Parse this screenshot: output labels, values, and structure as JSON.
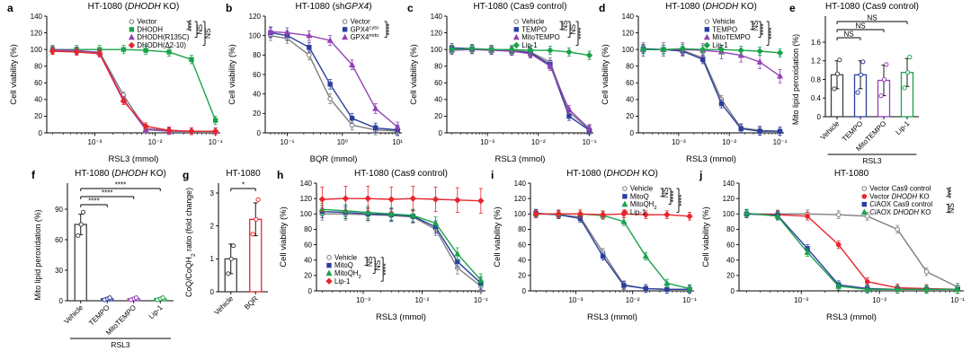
{
  "figure": {
    "background": "#ffffff"
  },
  "chart_data": [
    {
      "letter": "a",
      "type": "line",
      "title": "HT-1080 (*DHODH* KO)",
      "xlabel": "RSL3 (mmol)",
      "ylabel": "Cell viability (%)",
      "xlim": [
        0.00016,
        0.12
      ],
      "xticks": [
        0.001,
        0.01,
        0.1
      ],
      "xtick_labels": [
        "10⁻³",
        "10⁻²",
        "10⁻¹"
      ],
      "ylim": [
        0,
        140
      ],
      "yticks": [
        0,
        20,
        40,
        60,
        80,
        100,
        120,
        140
      ],
      "x": [
        0.0002,
        0.0005,
        0.0012,
        0.003,
        0.007,
        0.017,
        0.04,
        0.1
      ],
      "legend_pos": "top-right",
      "series": [
        {
          "name": "Vector",
          "color": "#7f7f7f",
          "marker": "circle",
          "open": true,
          "err": 4,
          "y": [
            99,
            98,
            97,
            45,
            5,
            3,
            2,
            2
          ]
        },
        {
          "name": "DHODH",
          "color": "#1aa34a",
          "marker": "square",
          "err": 5,
          "y": [
            100,
            100,
            100,
            100,
            99,
            97,
            88,
            15
          ]
        },
        {
          "name": "DHODH(R135C)",
          "color": "#9340b5",
          "marker": "triangle",
          "err": 4,
          "y": [
            100,
            99,
            96,
            40,
            4,
            2,
            2,
            2
          ]
        },
        {
          "name": "DHODH(Δ2-10)",
          "color": "#e8262d",
          "marker": "diamond",
          "err": 4,
          "y": [
            98,
            97,
            95,
            38,
            8,
            3,
            2,
            2
          ]
        }
      ],
      "sig": [
        {
          "to": 1,
          "label": "****"
        },
        {
          "to": 2,
          "label": "NS"
        },
        {
          "to": 3,
          "label": "NS"
        }
      ]
    },
    {
      "letter": "b",
      "type": "line",
      "title": "HT-1080 (sh*GPX4*)",
      "xlabel": "BQR (mmol)",
      "ylabel": "Cell viability (%)",
      "xlim": [
        0.04,
        12
      ],
      "xticks": [
        0.1,
        1,
        10
      ],
      "xtick_labels": [
        "10⁻¹",
        "10⁰",
        "10¹"
      ],
      "ylim": [
        0,
        120
      ],
      "yticks": [
        0,
        20,
        40,
        60,
        80,
        100,
        120
      ],
      "x": [
        0.05,
        0.1,
        0.25,
        0.6,
        1.5,
        4,
        10
      ],
      "legend_pos": "top-right",
      "series": [
        {
          "name": "Vector",
          "color": "#7f7f7f",
          "marker": "circle",
          "open": true,
          "err": 5,
          "y": [
            100,
            97,
            80,
            35,
            8,
            3,
            2
          ]
        },
        {
          "name": "GPX4^cyto^",
          "color": "#2b3f9e",
          "marker": "square",
          "err": 5,
          "y": [
            103,
            100,
            88,
            50,
            15,
            5,
            3
          ]
        },
        {
          "name": "GPX4^mito^",
          "color": "#9340b5",
          "marker": "triangle",
          "err": 5,
          "y": [
            104,
            103,
            100,
            95,
            70,
            25,
            6
          ]
        }
      ],
      "sig": [
        {
          "to": 2,
          "label": "****"
        }
      ]
    },
    {
      "letter": "c",
      "type": "line",
      "title": "HT-1080 (Cas9 control)",
      "xlabel": "RSL3 (mmol)",
      "ylabel": "Cell viability (%)",
      "xlim": [
        0.00016,
        0.12
      ],
      "xticks": [
        0.001,
        0.01,
        0.1
      ],
      "xtick_labels": [
        "10⁻³",
        "10⁻²",
        "10⁻¹"
      ],
      "ylim": [
        0,
        140
      ],
      "yticks": [
        0,
        20,
        40,
        60,
        80,
        100,
        120,
        140
      ],
      "x": [
        0.0002,
        0.0005,
        0.0012,
        0.003,
        0.007,
        0.017,
        0.04,
        0.1
      ],
      "legend_pos": "top-right",
      "series": [
        {
          "name": "Vehicle",
          "color": "#7f7f7f",
          "marker": "circle",
          "open": true,
          "err": 5,
          "y": [
            100,
            100,
            100,
            99,
            97,
            85,
            25,
            4
          ]
        },
        {
          "name": "TEMPO",
          "color": "#2b3f9e",
          "marker": "square",
          "err": 5,
          "y": [
            102,
            101,
            100,
            98,
            96,
            82,
            20,
            3
          ]
        },
        {
          "name": "MitoTEMPO",
          "color": "#9340b5",
          "marker": "triangle",
          "err": 5,
          "y": [
            99,
            100,
            99,
            98,
            95,
            80,
            28,
            5
          ]
        },
        {
          "name": "Lip-1",
          "color": "#1aa34a",
          "marker": "diamond",
          "err": 5,
          "y": [
            100,
            101,
            100,
            100,
            99,
            99,
            97,
            93
          ]
        }
      ],
      "sig": [
        {
          "to": 1,
          "label": "NS"
        },
        {
          "to": 2,
          "label": "NS"
        },
        {
          "to": 3,
          "label": "****"
        }
      ]
    },
    {
      "letter": "d",
      "type": "line",
      "title": "HT-1080 (*DHODH* KO)",
      "xlabel": "RSL3 (mmol)",
      "ylabel": "Cell viability (%)",
      "xlim": [
        0.00016,
        0.12
      ],
      "xticks": [
        0.001,
        0.01,
        0.1
      ],
      "xtick_labels": [
        "10⁻³",
        "10⁻²",
        "10⁻¹"
      ],
      "ylim": [
        0,
        140
      ],
      "yticks": [
        0,
        20,
        40,
        60,
        80,
        100,
        120,
        140
      ],
      "x": [
        0.0002,
        0.0005,
        0.0012,
        0.003,
        0.007,
        0.017,
        0.04,
        0.1
      ],
      "legend_pos": "top-right",
      "series": [
        {
          "name": "Vehicle",
          "color": "#7f7f7f",
          "marker": "circle",
          "open": true,
          "err": 5,
          "y": [
            100,
            100,
            99,
            90,
            40,
            6,
            3,
            2
          ]
        },
        {
          "name": "TEMPO",
          "color": "#2b3f9e",
          "marker": "square",
          "err": 5,
          "y": [
            101,
            100,
            98,
            88,
            35,
            5,
            2,
            2
          ]
        },
        {
          "name": "MitoTEMPO",
          "color": "#9340b5",
          "marker": "triangle",
          "err": 8,
          "y": [
            100,
            100,
            100,
            99,
            97,
            93,
            85,
            68
          ]
        },
        {
          "name": "Lip-1",
          "color": "#1aa34a",
          "marker": "diamond",
          "err": 5,
          "y": [
            100,
            100,
            101,
            100,
            100,
            99,
            98,
            96
          ]
        }
      ],
      "sig": [
        {
          "to": 1,
          "label": "NS"
        },
        {
          "to": 2,
          "label": "****"
        },
        {
          "to": 3,
          "label": "****"
        }
      ]
    },
    {
      "letter": "e",
      "type": "bar",
      "title": "HT-1080 (Cas9 control)",
      "ylabel": "Mito lipid peroxidation (%)",
      "ylim": [
        0,
        1.6
      ],
      "yticks": [
        0,
        0.4,
        0.8,
        1.2,
        1.6
      ],
      "categories": [
        "Vehicle",
        "TEMPO",
        "MitoTEMPO",
        "Lip-1"
      ],
      "colors": [
        "#404040",
        "#2b3f9e",
        "#9340b5",
        "#1aa34a"
      ],
      "values": [
        0.9,
        0.9,
        0.78,
        0.95
      ],
      "err": [
        0.3,
        0.3,
        0.33,
        0.3
      ],
      "points": [
        [
          0.6,
          0.92,
          1.22
        ],
        [
          0.52,
          0.9,
          1.18
        ],
        [
          0.45,
          0.8,
          1.12
        ],
        [
          0.62,
          0.95,
          1.28
        ]
      ],
      "group_label": "RSL3",
      "plot_right_pad": 56,
      "sig": [
        {
          "to": 1,
          "label": "NS"
        },
        {
          "to": 2,
          "label": "NS"
        },
        {
          "to": 3,
          "label": "NS"
        }
      ]
    },
    {
      "letter": "f",
      "type": "bar",
      "title": "HT-1080 (*DHODH* KO)",
      "ylabel": "Mito lipid peroxidation (%)",
      "ylim": [
        0,
        90
      ],
      "yticks": [
        0,
        30,
        60,
        90
      ],
      "categories": [
        "Vehicle",
        "TEMPO",
        "MitoTEMPO",
        "Lip-1"
      ],
      "colors": [
        "#404040",
        "#2b3f9e",
        "#9340b5",
        "#1aa34a"
      ],
      "values": [
        75,
        2,
        2,
        2
      ],
      "err": [
        10,
        1,
        1,
        1
      ],
      "points": [
        [
          64,
          75,
          87
        ],
        [
          1,
          2,
          3
        ],
        [
          1,
          2,
          3
        ],
        [
          1,
          2,
          3
        ]
      ],
      "group_label": "RSL3",
      "sig": [
        {
          "to": 1,
          "label": "****"
        },
        {
          "to": 2,
          "label": "****"
        },
        {
          "to": 3,
          "label": "****"
        }
      ]
    },
    {
      "letter": "g",
      "type": "bar",
      "title": "HT-1080",
      "ylabel": "CoQ/CoQH_2_ ratio (fold change)",
      "ylim": [
        0,
        3
      ],
      "yticks": [
        0,
        1,
        2,
        3
      ],
      "categories": [
        "Vehicle",
        "BQR"
      ],
      "colors": [
        "#404040",
        "#e8262d"
      ],
      "values": [
        1.0,
        2.2
      ],
      "err": [
        0.45,
        0.5
      ],
      "points": [
        [
          0.55,
          1.0,
          1.4
        ],
        [
          1.75,
          2.2,
          2.8
        ]
      ],
      "sig": [
        {
          "to": 1,
          "label": "*"
        }
      ]
    },
    {
      "letter": "h",
      "type": "line",
      "title": "HT-1080 (Cas9 control)",
      "xlabel": "RSL3 (mmol)",
      "ylabel": "Cell viability (%)",
      "xlim": [
        0.00016,
        0.12
      ],
      "xticks": [
        0.001,
        0.01,
        0.1
      ],
      "xtick_labels": [
        "10⁻³",
        "10⁻²",
        "10⁻¹"
      ],
      "ylim": [
        0,
        140
      ],
      "yticks": [
        0,
        20,
        40,
        60,
        80,
        100,
        120,
        140
      ],
      "x": [
        0.0002,
        0.0005,
        0.0012,
        0.003,
        0.007,
        0.017,
        0.04,
        0.1
      ],
      "legend_pos": "bottom-left",
      "series": [
        {
          "name": "Vehicle",
          "color": "#7f7f7f",
          "marker": "circle",
          "open": true,
          "err": 8,
          "y": [
            100,
            100,
            99,
            98,
            96,
            80,
            30,
            6
          ]
        },
        {
          "name": "MitoQ",
          "color": "#2b3f9e",
          "marker": "square",
          "err": 8,
          "y": [
            103,
            102,
            100,
            99,
            97,
            83,
            38,
            10
          ]
        },
        {
          "name": "MitoQH_2_",
          "color": "#1aa34a",
          "marker": "triangle",
          "err": 8,
          "y": [
            106,
            104,
            102,
            100,
            98,
            88,
            48,
            14
          ]
        },
        {
          "name": "Lip-1",
          "color": "#e8262d",
          "marker": "diamond",
          "err": 16,
          "y": [
            119,
            120,
            120,
            119,
            120,
            119,
            118,
            117
          ]
        }
      ],
      "sig": [
        {
          "to": 1,
          "label": "NS"
        },
        {
          "to": 2,
          "label": "NS"
        },
        {
          "to": 3,
          "label": "****"
        }
      ]
    },
    {
      "letter": "i",
      "type": "line",
      "title": "HT-1080 (*DHODH* KO)",
      "xlabel": "RSL3 (mmol)",
      "ylabel": "Cell viability (%)",
      "xlim": [
        0.00016,
        0.12
      ],
      "xticks": [
        0.001,
        0.01,
        0.1
      ],
      "xtick_labels": [
        "10⁻³",
        "10⁻²",
        "10⁻¹"
      ],
      "ylim": [
        0,
        140
      ],
      "yticks": [
        0,
        20,
        40,
        60,
        80,
        100,
        120,
        140
      ],
      "x": [
        0.0002,
        0.0005,
        0.0012,
        0.003,
        0.007,
        0.017,
        0.04,
        0.1
      ],
      "legend_pos": "top-right",
      "series": [
        {
          "name": "Vehicle",
          "color": "#7f7f7f",
          "marker": "circle",
          "open": true,
          "err": 5,
          "y": [
            100,
            99,
            96,
            50,
            8,
            3,
            2,
            2
          ]
        },
        {
          "name": "MitoQ",
          "color": "#2b3f9e",
          "marker": "square",
          "err": 5,
          "y": [
            101,
            99,
            94,
            45,
            7,
            3,
            2,
            2
          ]
        },
        {
          "name": "MitoQH_2_",
          "color": "#1aa34a",
          "marker": "triangle",
          "err": 5,
          "y": [
            100,
            100,
            100,
            98,
            90,
            45,
            10,
            3
          ]
        },
        {
          "name": "Lip-1",
          "color": "#e8262d",
          "marker": "diamond",
          "err": 5,
          "y": [
            100,
            100,
            100,
            99,
            100,
            99,
            99,
            97
          ]
        }
      ],
      "sig": [
        {
          "to": 1,
          "label": "NS"
        },
        {
          "to": 2,
          "label": "****"
        },
        {
          "to": 3,
          "label": "****"
        }
      ]
    },
    {
      "letter": "j",
      "type": "line",
      "title": "HT-1080",
      "xlabel": "RSL3 (mmol)",
      "ylabel": "Cell viability (%)",
      "xlim": [
        0.00016,
        0.12
      ],
      "xticks": [
        0.001,
        0.01,
        0.1
      ],
      "xtick_labels": [
        "10⁻³",
        "10⁻²",
        "10⁻¹"
      ],
      "ylim": [
        0,
        140
      ],
      "yticks": [
        0,
        20,
        40,
        60,
        80,
        100,
        120,
        140
      ],
      "x": [
        0.0002,
        0.0005,
        0.0012,
        0.003,
        0.007,
        0.017,
        0.04,
        0.1
      ],
      "legend_pos": "top-right",
      "series": [
        {
          "name": "Vector Cas9 control",
          "color": "#7f7f7f",
          "marker": "circle",
          "open": true,
          "err": 5,
          "y": [
            100,
            100,
            100,
            99,
            97,
            80,
            25,
            5
          ]
        },
        {
          "name": "Vector *DHODH* KO",
          "color": "#e8262d",
          "marker": "circle",
          "err": 5,
          "y": [
            100,
            99,
            97,
            60,
            12,
            4,
            3,
            2
          ]
        },
        {
          "name": "*Ci*AOX Cas9 control",
          "color": "#2b3f9e",
          "marker": "square",
          "err": 5,
          "y": [
            100,
            98,
            55,
            8,
            3,
            2,
            2,
            2
          ]
        },
        {
          "name": "*Ci*AOX *DHODH* KO",
          "color": "#1aa34a",
          "marker": "triangle",
          "err": 5,
          "y": [
            101,
            97,
            50,
            6,
            2,
            2,
            2,
            2
          ]
        }
      ],
      "sig": [
        {
          "from": 0,
          "to": 1,
          "label": "****"
        },
        {
          "from": 2,
          "to": 3,
          "label": "NS",
          "col": 0
        }
      ]
    }
  ]
}
